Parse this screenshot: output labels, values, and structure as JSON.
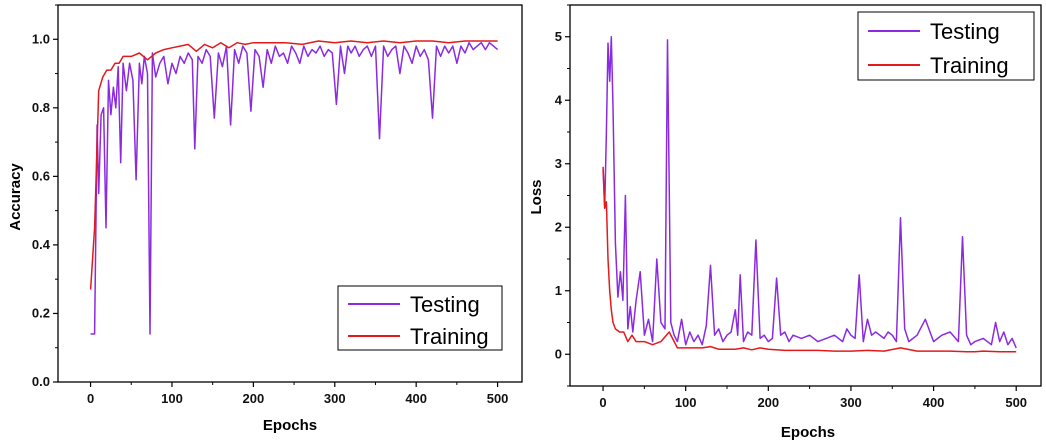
{
  "chart_data": [
    {
      "type": "line",
      "xlabel": "Epochs",
      "ylabel": "Accuracy",
      "xlim": [
        -40,
        530
      ],
      "ylim": [
        0.0,
        1.1
      ],
      "xticks": [
        0,
        100,
        200,
        300,
        400,
        500
      ],
      "yticks": [
        0.0,
        0.2,
        0.4,
        0.6,
        0.8,
        1.0
      ],
      "ytick_labels": [
        "0.0",
        "0.2",
        "0.4",
        "0.6",
        "0.8",
        "1.0"
      ],
      "grid": false,
      "legend_position": "bottom-right",
      "series": [
        {
          "name": "Testing",
          "color": "#8a2be2",
          "x": [
            0,
            5,
            8,
            10,
            13,
            16,
            19,
            22,
            25,
            28,
            31,
            34,
            37,
            40,
            44,
            48,
            52,
            56,
            60,
            63,
            66,
            70,
            73,
            76,
            80,
            85,
            90,
            95,
            100,
            105,
            110,
            115,
            120,
            125,
            128,
            132,
            137,
            142,
            147,
            152,
            157,
            162,
            167,
            172,
            177,
            182,
            187,
            192,
            197,
            202,
            207,
            212,
            217,
            222,
            227,
            232,
            237,
            242,
            247,
            252,
            257,
            262,
            267,
            272,
            277,
            282,
            287,
            292,
            297,
            302,
            307,
            312,
            316,
            320,
            325,
            330,
            335,
            340,
            345,
            350,
            355,
            360,
            365,
            370,
            375,
            380,
            385,
            390,
            395,
            400,
            405,
            410,
            415,
            420,
            425,
            430,
            435,
            440,
            445,
            450,
            455,
            460,
            465,
            470,
            475,
            480,
            485,
            490,
            495,
            500
          ],
          "values": [
            0.14,
            0.14,
            0.75,
            0.55,
            0.78,
            0.8,
            0.45,
            0.88,
            0.78,
            0.86,
            0.8,
            0.92,
            0.64,
            0.93,
            0.85,
            0.93,
            0.88,
            0.59,
            0.93,
            0.87,
            0.95,
            0.9,
            0.14,
            0.96,
            0.89,
            0.93,
            0.95,
            0.87,
            0.93,
            0.9,
            0.95,
            0.93,
            0.96,
            0.94,
            0.68,
            0.95,
            0.93,
            0.97,
            0.95,
            0.77,
            0.96,
            0.92,
            0.98,
            0.75,
            0.97,
            0.93,
            0.98,
            0.96,
            0.79,
            0.97,
            0.95,
            0.86,
            0.97,
            0.93,
            0.98,
            0.95,
            0.96,
            0.93,
            0.98,
            0.96,
            0.93,
            0.98,
            0.95,
            0.97,
            0.96,
            0.98,
            0.95,
            0.97,
            0.96,
            0.81,
            0.98,
            0.9,
            0.98,
            0.96,
            0.98,
            0.95,
            0.97,
            0.98,
            0.95,
            0.98,
            0.71,
            0.98,
            0.95,
            0.97,
            0.98,
            0.9,
            0.98,
            0.96,
            0.93,
            0.98,
            0.95,
            0.97,
            0.94,
            0.77,
            0.98,
            0.95,
            0.98,
            0.96,
            0.98,
            0.93,
            0.98,
            0.96,
            0.99,
            0.97,
            0.98,
            0.99,
            0.97,
            0.99,
            0.98,
            0.97
          ]
        },
        {
          "name": "Training",
          "color": "#e31a1c",
          "x": [
            0,
            5,
            10,
            15,
            20,
            25,
            30,
            35,
            40,
            50,
            60,
            70,
            80,
            90,
            100,
            110,
            120,
            130,
            140,
            150,
            160,
            170,
            180,
            190,
            200,
            220,
            240,
            260,
            280,
            300,
            320,
            340,
            360,
            380,
            400,
            420,
            440,
            460,
            480,
            500
          ],
          "values": [
            0.27,
            0.45,
            0.85,
            0.89,
            0.91,
            0.91,
            0.93,
            0.93,
            0.95,
            0.95,
            0.96,
            0.94,
            0.96,
            0.97,
            0.975,
            0.98,
            0.985,
            0.965,
            0.985,
            0.975,
            0.99,
            0.975,
            0.99,
            0.985,
            0.99,
            0.99,
            0.99,
            0.985,
            0.995,
            0.99,
            0.995,
            0.99,
            0.995,
            0.99,
            0.995,
            0.995,
            0.99,
            0.995,
            0.995,
            0.995
          ]
        }
      ]
    },
    {
      "type": "line",
      "xlabel": "Epochs",
      "ylabel": "Loss",
      "xlim": [
        -40,
        530
      ],
      "ylim": [
        -0.5,
        5.5
      ],
      "xticks": [
        0,
        100,
        200,
        300,
        400,
        500
      ],
      "yticks": [
        0,
        1,
        2,
        3,
        4,
        5
      ],
      "ytick_labels": [
        "0",
        "1",
        "2",
        "3",
        "4",
        "5"
      ],
      "grid": false,
      "legend_position": "top-right",
      "series": [
        {
          "name": "Testing",
          "color": "#8a2be2",
          "x": [
            0,
            2,
            4,
            6,
            8,
            10,
            12,
            15,
            18,
            21,
            24,
            27,
            30,
            33,
            36,
            40,
            45,
            50,
            55,
            60,
            65,
            70,
            75,
            78,
            82,
            86,
            90,
            95,
            100,
            105,
            110,
            115,
            120,
            125,
            130,
            135,
            140,
            145,
            150,
            155,
            160,
            163,
            166,
            170,
            175,
            180,
            185,
            190,
            195,
            200,
            205,
            210,
            215,
            220,
            225,
            230,
            240,
            250,
            260,
            270,
            280,
            290,
            295,
            300,
            305,
            310,
            315,
            320,
            325,
            330,
            335,
            340,
            345,
            350,
            355,
            360,
            365,
            370,
            380,
            390,
            400,
            410,
            420,
            430,
            435,
            440,
            445,
            450,
            460,
            470,
            475,
            480,
            485,
            490,
            495,
            500
          ],
          "values": [
            2.9,
            2.3,
            3.5,
            4.9,
            4.3,
            5.0,
            3.9,
            1.75,
            0.9,
            1.3,
            0.85,
            2.5,
            0.4,
            0.75,
            0.35,
            0.85,
            1.3,
            0.3,
            0.55,
            0.2,
            1.5,
            0.5,
            0.4,
            4.95,
            0.5,
            0.3,
            0.2,
            0.55,
            0.15,
            0.35,
            0.2,
            0.3,
            0.15,
            0.45,
            1.4,
            0.3,
            0.4,
            0.2,
            0.3,
            0.35,
            0.7,
            0.3,
            1.25,
            0.2,
            0.35,
            0.3,
            1.8,
            0.25,
            0.3,
            0.2,
            0.25,
            1.2,
            0.3,
            0.35,
            0.2,
            0.3,
            0.25,
            0.3,
            0.2,
            0.25,
            0.3,
            0.2,
            0.4,
            0.3,
            0.25,
            1.25,
            0.2,
            0.55,
            0.3,
            0.35,
            0.3,
            0.25,
            0.35,
            0.3,
            0.2,
            2.15,
            0.4,
            0.2,
            0.3,
            0.55,
            0.2,
            0.3,
            0.35,
            0.2,
            1.85,
            0.3,
            0.15,
            0.2,
            0.25,
            0.15,
            0.5,
            0.2,
            0.35,
            0.15,
            0.25,
            0.1
          ]
        },
        {
          "name": "Training",
          "color": "#e31a1c",
          "x": [
            0,
            2,
            4,
            6,
            8,
            10,
            12,
            15,
            20,
            25,
            30,
            35,
            40,
            45,
            50,
            60,
            70,
            80,
            90,
            100,
            110,
            120,
            130,
            140,
            150,
            160,
            170,
            180,
            190,
            200,
            220,
            240,
            260,
            280,
            300,
            320,
            340,
            360,
            380,
            400,
            420,
            440,
            450,
            460,
            480,
            500
          ],
          "values": [
            2.95,
            2.3,
            2.4,
            1.5,
            1.0,
            0.7,
            0.5,
            0.4,
            0.35,
            0.35,
            0.2,
            0.3,
            0.2,
            0.2,
            0.2,
            0.15,
            0.2,
            0.35,
            0.1,
            0.1,
            0.1,
            0.1,
            0.12,
            0.08,
            0.08,
            0.08,
            0.1,
            0.07,
            0.1,
            0.08,
            0.06,
            0.06,
            0.06,
            0.05,
            0.05,
            0.06,
            0.05,
            0.1,
            0.05,
            0.05,
            0.05,
            0.04,
            0.04,
            0.05,
            0.04,
            0.04
          ]
        }
      ]
    }
  ]
}
